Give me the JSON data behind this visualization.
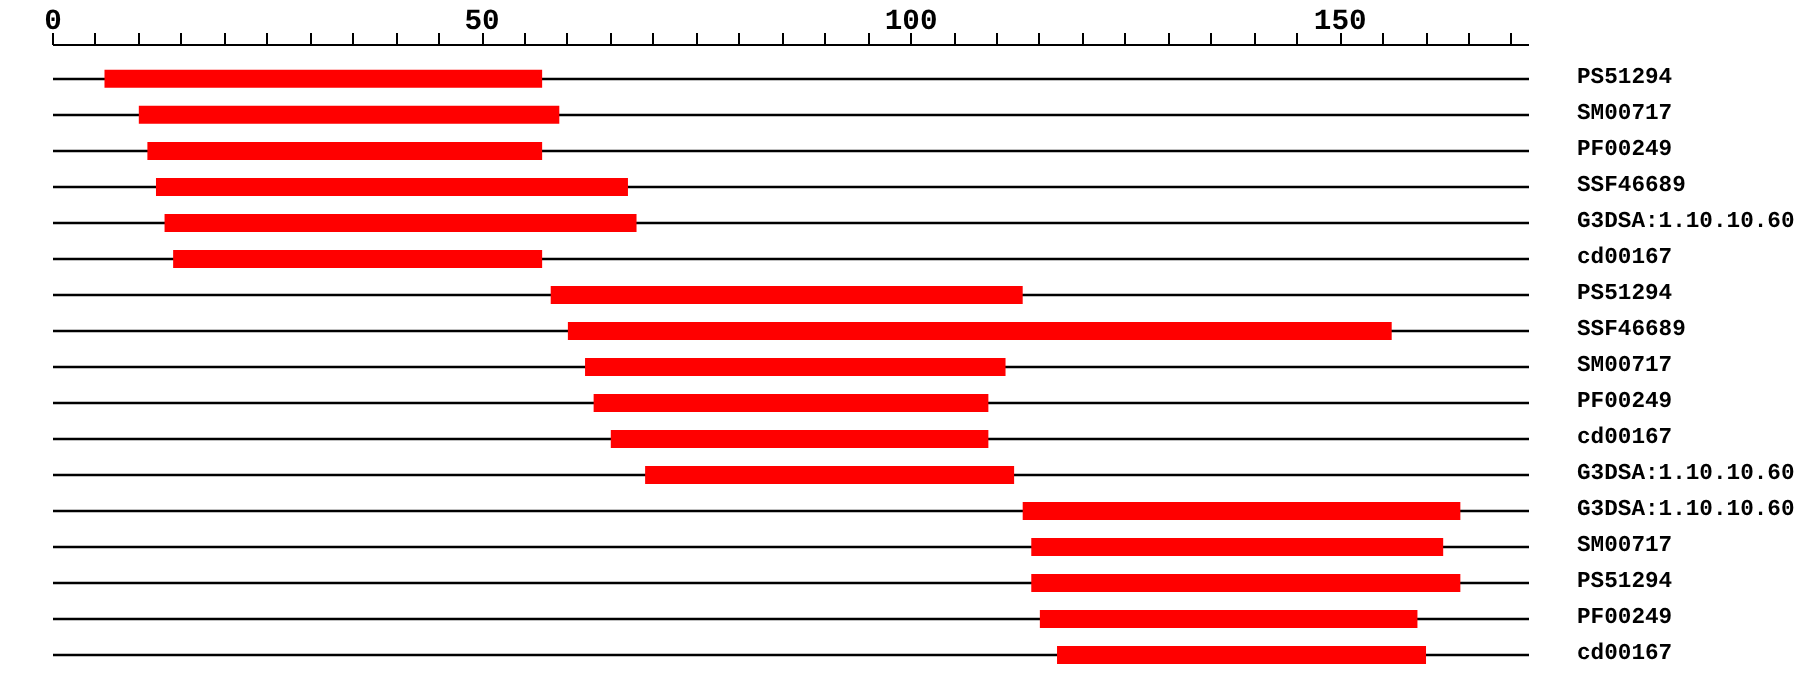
{
  "chart_data": {
    "type": "bar",
    "orientation": "horizontal",
    "categories": [
      "PS51294",
      "SM00717",
      "PF00249",
      "SSF46689",
      "G3DSA:1.10.10.60",
      "cd00167",
      "PS51294",
      "SSF46689",
      "SM00717",
      "PF00249",
      "cd00167",
      "G3DSA:1.10.10.60",
      "G3DSA:1.10.10.60",
      "SM00717",
      "PS51294",
      "PF00249",
      "cd00167"
    ],
    "base": [
      6,
      10,
      11,
      12,
      13,
      14,
      58,
      60,
      62,
      63,
      65,
      69,
      113,
      114,
      114,
      115,
      117
    ],
    "values": [
      51,
      49,
      46,
      55,
      55,
      43,
      55,
      96,
      49,
      46,
      44,
      43,
      51,
      48,
      50,
      44,
      43
    ],
    "color": "#ff0000",
    "xlim": [
      0,
      172
    ],
    "xticks": [
      0,
      {
        "value": 5,
        "label": null
      },
      {
        "value": 10,
        "label": null
      },
      {
        "value": 15,
        "label": null
      },
      {
        "value": 20,
        "label": null
      },
      {
        "value": 25,
        "label": null
      },
      {
        "value": 30,
        "label": null
      },
      {
        "value": 35,
        "label": null
      },
      {
        "value": 40,
        "label": null
      },
      {
        "value": 45,
        "label": null
      },
      50,
      {
        "value": 55,
        "label": null
      },
      {
        "value": 60,
        "label": null
      },
      {
        "value": 65,
        "label": null
      },
      {
        "value": 70,
        "label": null
      },
      {
        "value": 75,
        "label": null
      },
      {
        "value": 80,
        "label": null
      },
      {
        "value": 85,
        "label": null
      },
      {
        "value": 90,
        "label": null
      },
      {
        "value": 95,
        "label": null
      },
      100,
      {
        "value": 105,
        "label": null
      },
      {
        "value": 110,
        "label": null
      },
      {
        "value": 115,
        "label": null
      },
      {
        "value": 120,
        "label": null
      },
      {
        "value": 125,
        "label": null
      },
      {
        "value": 130,
        "label": null
      },
      {
        "value": 135,
        "label": null
      },
      {
        "value": 140,
        "label": null
      },
      {
        "value": 145,
        "label": null
      },
      150,
      {
        "value": 155,
        "label": null
      },
      {
        "value": 160,
        "label": null
      },
      {
        "value": 165,
        "label": null
      },
      {
        "value": 170,
        "label": null
      }
    ],
    "grid": "y"
  }
}
